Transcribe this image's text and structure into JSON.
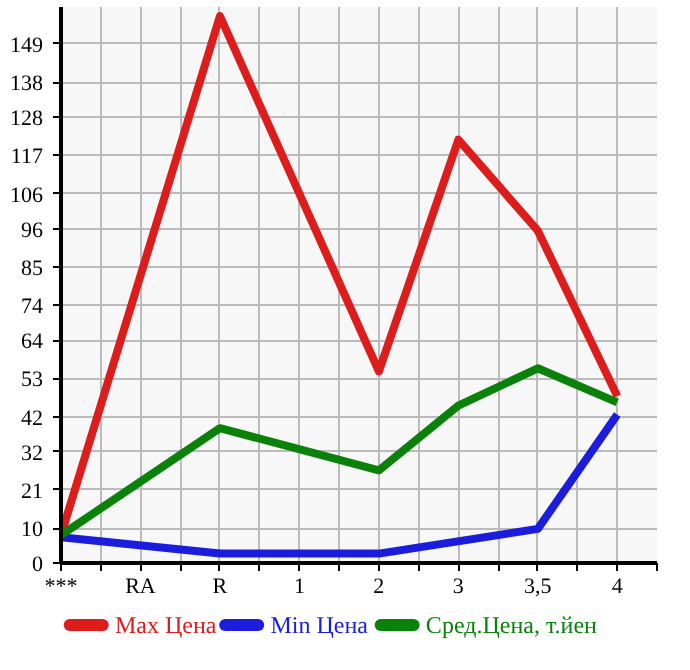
{
  "chart_data": {
    "type": "line",
    "categories": [
      "***",
      "RA",
      "R",
      "1",
      "2",
      "3",
      "3,5",
      "4"
    ],
    "ylim": [
      0,
      159.6
    ],
    "yticks": [
      0,
      10,
      21,
      32,
      42,
      53,
      64,
      74,
      85,
      96,
      106,
      117,
      128,
      138,
      149
    ],
    "grid": true,
    "legend": "bottom",
    "series": [
      {
        "name": "Max Цена",
        "color": "#dd1c1c",
        "x": [
          "***",
          "R",
          "2",
          "3",
          "3,5",
          "4"
        ],
        "values": [
          8,
          157,
          55,
          121.5,
          95.4,
          47.9
        ]
      },
      {
        "name": "Min Цена",
        "color": "#1c1cdd",
        "x": [
          "***",
          "R",
          "2",
          "3,5",
          "4"
        ],
        "values": [
          7.4,
          2.7,
          2.7,
          9.8,
          42.6
        ]
      },
      {
        "name": "Сред.Цена, т.йен",
        "color": "#0a820a",
        "x": [
          "***",
          "R",
          "2",
          "3",
          "3,5",
          "4"
        ],
        "values": [
          8,
          38.7,
          26.6,
          45.2,
          55.9,
          46.1
        ]
      }
    ]
  }
}
